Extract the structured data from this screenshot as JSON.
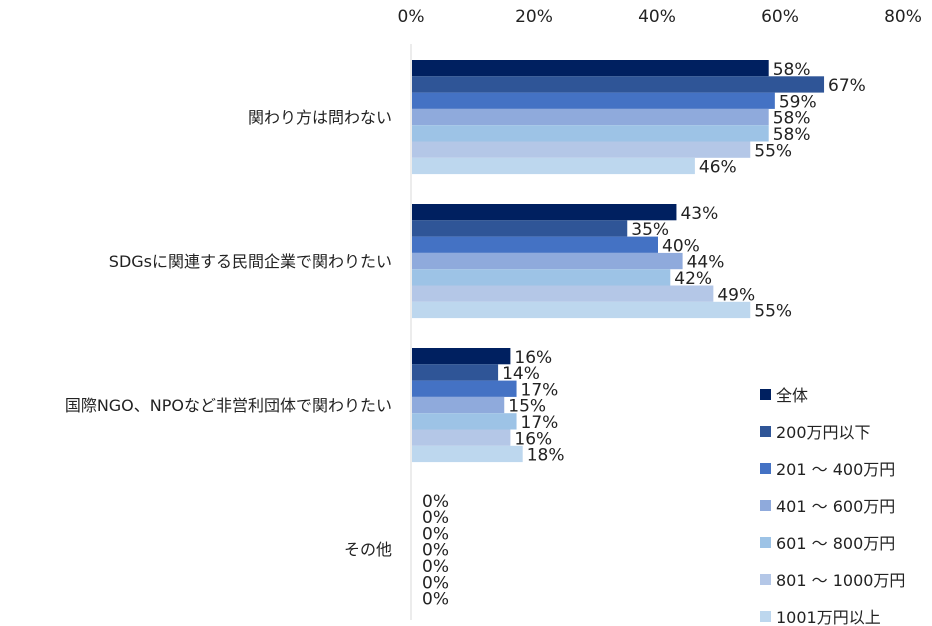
{
  "chart_data": {
    "type": "bar",
    "orientation": "horizontal",
    "title": "",
    "xlabel": "",
    "ylabel": "",
    "xlim": [
      0,
      80
    ],
    "x_ticks": [
      "0%",
      "20%",
      "40%",
      "60%",
      "80%"
    ],
    "x_tick_values": [
      0,
      20,
      40,
      60,
      80
    ],
    "x_axis_position": "top",
    "grid": false,
    "legend_placement": "bottom-right",
    "categories": [
      "関わり方は問わない",
      "SDGsに関連する民間企業で関わりたい",
      "国際NGO、NPOなど非営利団体で関わりたい",
      "その他"
    ],
    "series": [
      {
        "name": "全体",
        "color": "#002060",
        "values": [
          58,
          43,
          16,
          0
        ],
        "labels": [
          "58%",
          "43%",
          "16%",
          "0%"
        ]
      },
      {
        "name": "200万円以下",
        "color": "#2F5597",
        "values": [
          67,
          35,
          14,
          0
        ],
        "labels": [
          "67%",
          "35%",
          "14%",
          "0%"
        ]
      },
      {
        "name": "201 〜 400万円",
        "color": "#4472C4",
        "values": [
          59,
          40,
          17,
          0
        ],
        "labels": [
          "59%",
          "40%",
          "17%",
          "0%"
        ]
      },
      {
        "name": "401 〜 600万円",
        "color": "#8FAADC",
        "values": [
          58,
          44,
          15,
          0
        ],
        "labels": [
          "58%",
          "44%",
          "15%",
          "0%"
        ]
      },
      {
        "name": "601 〜 800万円",
        "color": "#9DC3E6",
        "values": [
          58,
          42,
          17,
          0
        ],
        "labels": [
          "58%",
          "42%",
          "17%",
          "0%"
        ]
      },
      {
        "name": "801 〜 1000万円",
        "color": "#B4C7E7",
        "values": [
          55,
          49,
          16,
          0
        ],
        "labels": [
          "55%",
          "49%",
          "16%",
          "0%"
        ]
      },
      {
        "name": "1001万円以上",
        "color": "#BDD7EE",
        "values": [
          46,
          55,
          18,
          0
        ],
        "labels": [
          "46%",
          "55%",
          "18%",
          "0%"
        ]
      }
    ]
  }
}
